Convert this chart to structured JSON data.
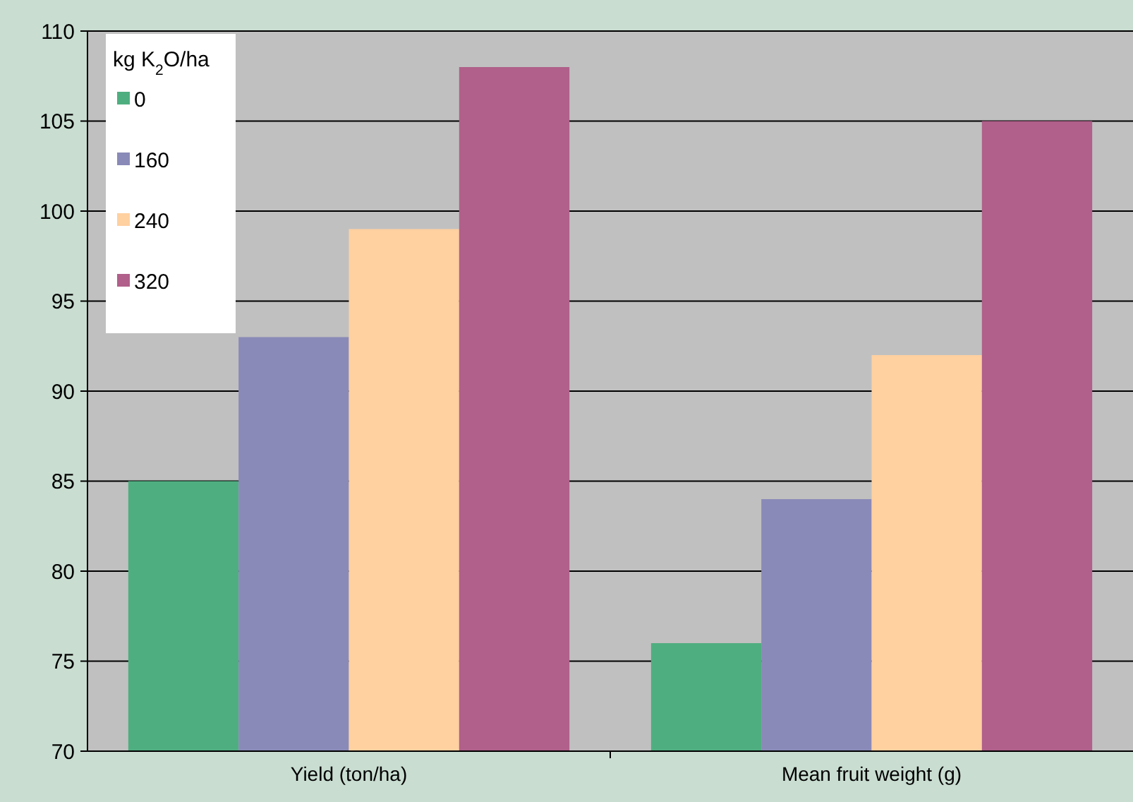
{
  "chart_data": {
    "type": "bar",
    "legend_title": "kg K$_{2}$O/ha",
    "categories": [
      "Yield (ton/ha)",
      "Mean fruit weight (g)"
    ],
    "series": [
      {
        "name": "0",
        "color": "#4fae80",
        "values": [
          85,
          76
        ]
      },
      {
        "name": "160",
        "color": "#8a8ab8",
        "values": [
          93,
          84
        ]
      },
      {
        "name": "240",
        "color": "#ffd0a0",
        "values": [
          99,
          92
        ]
      },
      {
        "name": "320",
        "color": "#b0608a",
        "values": [
          108,
          105
        ]
      }
    ],
    "ylim": [
      70,
      110
    ],
    "yticks": [
      70,
      75,
      80,
      85,
      90,
      95,
      100,
      105,
      110
    ],
    "grid": "y",
    "legend": "top left"
  }
}
